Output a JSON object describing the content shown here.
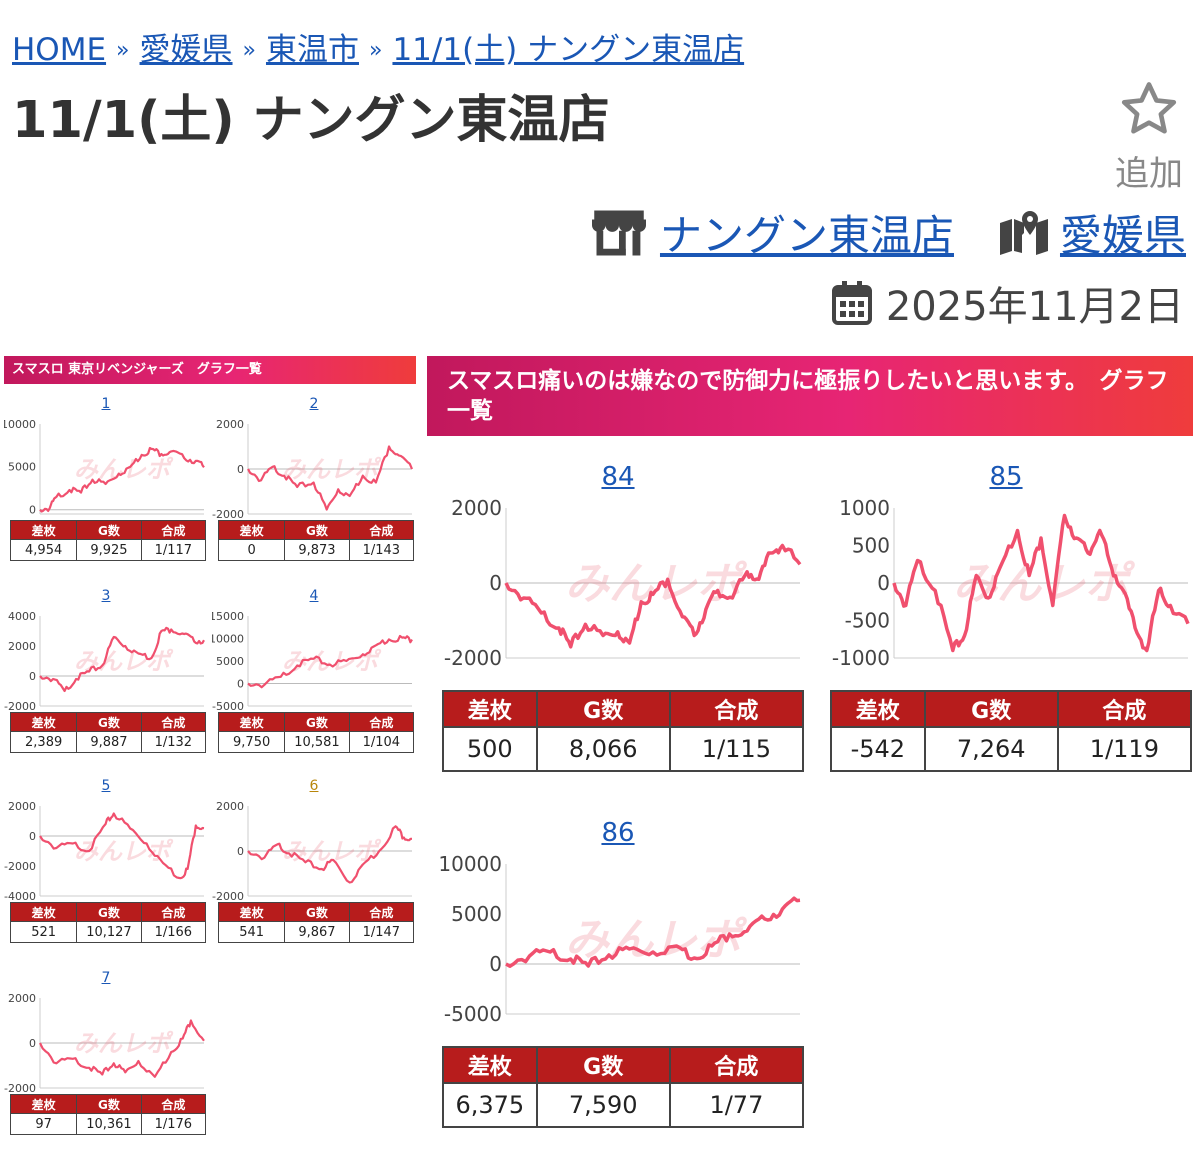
{
  "breadcrumb": {
    "items": [
      "HOME",
      "愛媛県",
      "東温市",
      "11/1(土) ナングン東温店"
    ],
    "separator": "»"
  },
  "page_title": "11/1(土) ナングン東温店",
  "favorite": {
    "icon": "star-outline-icon",
    "label": "追加"
  },
  "store_link": {
    "icon": "store-icon",
    "label": "ナングン東温店"
  },
  "prefecture_link": {
    "icon": "map-pin-icon",
    "label": "愛媛県"
  },
  "date": {
    "icon": "calendar-icon",
    "label": "2025年11月2日"
  },
  "colors": {
    "accent": "#e72574",
    "header_red": "#b71c1c",
    "line": "#f0506e",
    "link": "#1a57b5",
    "watermark": "みんレポ"
  },
  "table_headers": [
    "差枚",
    "G数",
    "合成"
  ],
  "left_panel": {
    "title": "スマスロ 東京リベンジャーズ　グラフ一覧",
    "machines": [
      {
        "num": "1",
        "yticks": [
          "10000",
          "5000",
          "0"
        ],
        "ymin": -500,
        "ymax": 10000,
        "diff": "4,954",
        "games": "9,925",
        "rate": "1/117",
        "path": [
          [
            0,
            0
          ],
          [
            0.06,
            200
          ],
          [
            0.1,
            1500
          ],
          [
            0.18,
            2300
          ],
          [
            0.25,
            2000
          ],
          [
            0.32,
            3500
          ],
          [
            0.4,
            3000
          ],
          [
            0.48,
            4200
          ],
          [
            0.55,
            5000
          ],
          [
            0.62,
            6400
          ],
          [
            0.68,
            7100
          ],
          [
            0.74,
            6500
          ],
          [
            0.8,
            6800
          ],
          [
            0.88,
            6000
          ],
          [
            0.95,
            5700
          ],
          [
            1,
            4954
          ]
        ]
      },
      {
        "num": "2",
        "yticks": [
          "2000",
          "0",
          "-2000"
        ],
        "ymin": -2000,
        "ymax": 2000,
        "diff": "0",
        "games": "9,873",
        "rate": "1/143",
        "path": [
          [
            0,
            0
          ],
          [
            0.08,
            -500
          ],
          [
            0.15,
            100
          ],
          [
            0.22,
            -300
          ],
          [
            0.3,
            -800
          ],
          [
            0.4,
            -600
          ],
          [
            0.48,
            -1800
          ],
          [
            0.55,
            -900
          ],
          [
            0.62,
            -1200
          ],
          [
            0.7,
            -300
          ],
          [
            0.78,
            -600
          ],
          [
            0.86,
            1000
          ],
          [
            0.92,
            600
          ],
          [
            1,
            0
          ]
        ]
      },
      {
        "num": "3",
        "yticks": [
          "4000",
          "2000",
          "0",
          "-2000"
        ],
        "ymin": -2000,
        "ymax": 4000,
        "diff": "2,389",
        "games": "9,887",
        "rate": "1/132",
        "path": [
          [
            0,
            0
          ],
          [
            0.08,
            -200
          ],
          [
            0.15,
            -1000
          ],
          [
            0.22,
            -200
          ],
          [
            0.3,
            300
          ],
          [
            0.38,
            700
          ],
          [
            0.45,
            2600
          ],
          [
            0.52,
            2000
          ],
          [
            0.6,
            1500
          ],
          [
            0.68,
            1200
          ],
          [
            0.74,
            3000
          ],
          [
            0.8,
            3100
          ],
          [
            0.88,
            2800
          ],
          [
            0.94,
            2300
          ],
          [
            1,
            2389
          ]
        ]
      },
      {
        "num": "4",
        "yticks": [
          "15000",
          "10000",
          "5000",
          "0",
          "-5000"
        ],
        "ymin": -5000,
        "ymax": 15000,
        "diff": "9,750",
        "games": "10,581",
        "rate": "1/104",
        "path": [
          [
            0,
            0
          ],
          [
            0.1,
            -300
          ],
          [
            0.2,
            1500
          ],
          [
            0.3,
            4000
          ],
          [
            0.4,
            5500
          ],
          [
            0.5,
            4200
          ],
          [
            0.6,
            5000
          ],
          [
            0.7,
            6500
          ],
          [
            0.78,
            8500
          ],
          [
            0.86,
            9800
          ],
          [
            0.94,
            10200
          ],
          [
            1,
            9750
          ]
        ]
      },
      {
        "num": "5",
        "yticks": [
          "2000",
          "0",
          "-2000",
          "-4000"
        ],
        "ymin": -4000,
        "ymax": 2000,
        "diff": "521",
        "games": "10,127",
        "rate": "1/166",
        "path": [
          [
            0,
            0
          ],
          [
            0.1,
            -800
          ],
          [
            0.2,
            -500
          ],
          [
            0.3,
            -1000
          ],
          [
            0.4,
            800
          ],
          [
            0.45,
            1500
          ],
          [
            0.55,
            500
          ],
          [
            0.65,
            -500
          ],
          [
            0.75,
            -1800
          ],
          [
            0.85,
            -2800
          ],
          [
            0.9,
            -2200
          ],
          [
            0.95,
            700
          ],
          [
            1,
            521
          ]
        ]
      },
      {
        "num": "6",
        "yticks": [
          "2000",
          "0",
          "-2000"
        ],
        "ymin": -2000,
        "ymax": 2000,
        "diff": "541",
        "games": "9,867",
        "rate": "1/147",
        "path": [
          [
            0,
            0
          ],
          [
            0.1,
            -300
          ],
          [
            0.18,
            300
          ],
          [
            0.25,
            -100
          ],
          [
            0.35,
            -500
          ],
          [
            0.45,
            -800
          ],
          [
            0.52,
            -400
          ],
          [
            0.62,
            -1400
          ],
          [
            0.7,
            -600
          ],
          [
            0.8,
            0
          ],
          [
            0.9,
            1100
          ],
          [
            0.95,
            600
          ],
          [
            1,
            541
          ]
        ]
      },
      {
        "num": "7",
        "yticks": [
          "2000",
          "0",
          "-2000"
        ],
        "ymin": -2000,
        "ymax": 2000,
        "diff": "97",
        "games": "10,361",
        "rate": "1/176",
        "path": [
          [
            0,
            0
          ],
          [
            0.1,
            -900
          ],
          [
            0.2,
            -700
          ],
          [
            0.3,
            -1100
          ],
          [
            0.38,
            -1400
          ],
          [
            0.45,
            -900
          ],
          [
            0.52,
            -1300
          ],
          [
            0.6,
            -800
          ],
          [
            0.7,
            -1500
          ],
          [
            0.8,
            -400
          ],
          [
            0.87,
            200
          ],
          [
            0.92,
            1000
          ],
          [
            1,
            97
          ]
        ]
      }
    ]
  },
  "right_panel": {
    "title": "スマスロ痛いのは嫌なので防御力に極振りしたいと思います。　グラフ一覧",
    "machines": [
      {
        "num": "84",
        "yticks": [
          "2000",
          "0",
          "-2000"
        ],
        "ymin": -2000,
        "ymax": 2000,
        "diff": "500",
        "games": "8,066",
        "rate": "1/115",
        "path": [
          [
            0,
            0
          ],
          [
            0.06,
            -400
          ],
          [
            0.12,
            -800
          ],
          [
            0.18,
            -1200
          ],
          [
            0.22,
            -1700
          ],
          [
            0.27,
            -1100
          ],
          [
            0.33,
            -1400
          ],
          [
            0.38,
            -1300
          ],
          [
            0.42,
            -1600
          ],
          [
            0.46,
            -500
          ],
          [
            0.5,
            -300
          ],
          [
            0.55,
            100
          ],
          [
            0.6,
            -900
          ],
          [
            0.64,
            -1400
          ],
          [
            0.68,
            -700
          ],
          [
            0.72,
            -200
          ],
          [
            0.77,
            -400
          ],
          [
            0.82,
            300
          ],
          [
            0.86,
            100
          ],
          [
            0.9,
            800
          ],
          [
            0.94,
            1000
          ],
          [
            1,
            500
          ]
        ]
      },
      {
        "num": "85",
        "yticks": [
          "1000",
          "500",
          "0",
          "-500",
          "-1000"
        ],
        "ymin": -1000,
        "ymax": 1000,
        "diff": "-542",
        "games": "7,264",
        "rate": "1/119",
        "path": [
          [
            0,
            0
          ],
          [
            0.04,
            -300
          ],
          [
            0.08,
            300
          ],
          [
            0.14,
            -100
          ],
          [
            0.2,
            -900
          ],
          [
            0.24,
            -700
          ],
          [
            0.28,
            100
          ],
          [
            0.32,
            -200
          ],
          [
            0.36,
            200
          ],
          [
            0.42,
            700
          ],
          [
            0.46,
            100
          ],
          [
            0.5,
            600
          ],
          [
            0.54,
            -300
          ],
          [
            0.58,
            900
          ],
          [
            0.62,
            600
          ],
          [
            0.66,
            400
          ],
          [
            0.7,
            700
          ],
          [
            0.74,
            200
          ],
          [
            0.78,
            -100
          ],
          [
            0.82,
            -600
          ],
          [
            0.86,
            -900
          ],
          [
            0.9,
            -100
          ],
          [
            0.94,
            -300
          ],
          [
            1,
            -542
          ]
        ]
      },
      {
        "num": "86",
        "yticks": [
          "10000",
          "5000",
          "0",
          "-5000"
        ],
        "ymin": -5000,
        "ymax": 10000,
        "diff": "6,375",
        "games": "7,590",
        "rate": "1/77",
        "path": [
          [
            0,
            0
          ],
          [
            0.08,
            800
          ],
          [
            0.15,
            1200
          ],
          [
            0.22,
            500
          ],
          [
            0.28,
            -200
          ],
          [
            0.35,
            900
          ],
          [
            0.42,
            1500
          ],
          [
            0.5,
            1200
          ],
          [
            0.58,
            1800
          ],
          [
            0.64,
            600
          ],
          [
            0.7,
            1800
          ],
          [
            0.76,
            3000
          ],
          [
            0.82,
            3300
          ],
          [
            0.88,
            4500
          ],
          [
            0.94,
            5500
          ],
          [
            1,
            6375
          ]
        ]
      }
    ]
  }
}
